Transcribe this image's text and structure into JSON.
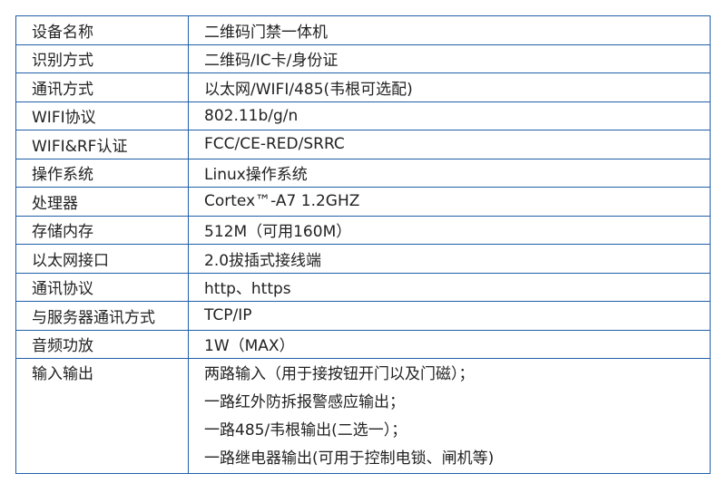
{
  "rows": [
    {
      "label": "设备名称",
      "value": "二维码门禁一体机"
    },
    {
      "label": "识别方式",
      "value": "二维码/IC卡/身份证"
    },
    {
      "label": "通讯方式",
      "value": "以太网/WIFI/485(韦根可选配)"
    },
    {
      "label": "WIFI协议",
      "value": "802.11b/g/n"
    },
    {
      "label": "WIFI&RF认证",
      "value": "FCC/CE-RED/SRRC"
    },
    {
      "label": "操作系统",
      "value": "Linux操作系统"
    },
    {
      "label": "处理器",
      "value": "Cortex™-A7 1.2GHZ"
    },
    {
      "label": "存储内存",
      "value": "512M（可用160M）"
    },
    {
      "label": "以太网接口",
      "value": "2.0拔插式接线端"
    },
    {
      "label": "通讯协议",
      "value": "http、https"
    },
    {
      "label": "与服务器通讯方式",
      "value": "TCP/IP"
    },
    {
      "label": "音频功放",
      "value": "1W（MAX）"
    }
  ],
  "io": {
    "label": "输入输出",
    "lines": [
      "两路输入（用于接按钮开门以及门磁）；",
      "一路红外防拆报警感应输出；",
      "一路485/韦根输出(二选一）；",
      "一路继电器输出(可用于控制电锁、闸机等)"
    ]
  },
  "colors": {
    "border": "#1f5fa8",
    "text": "#222222"
  }
}
